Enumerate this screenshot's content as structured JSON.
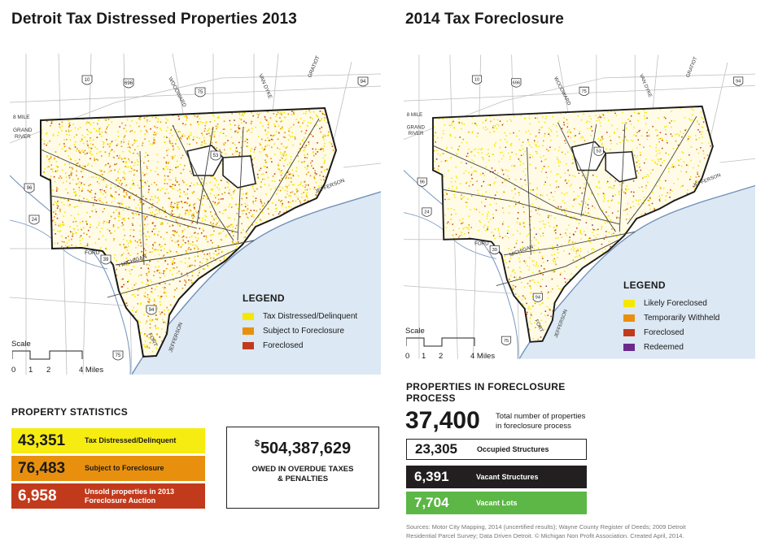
{
  "left": {
    "title": "Detroit Tax Distressed Properties 2013",
    "legend": {
      "heading": "LEGEND",
      "items": [
        {
          "label": "Tax Distressed/Delinquent",
          "color": "#f5e800"
        },
        {
          "label": "Subject to Foreclosure",
          "color": "#e8900e"
        },
        {
          "label": "Foreclosed",
          "color": "#c23a1c"
        }
      ]
    },
    "scale": {
      "title": "Scale",
      "ticks": [
        "0",
        "1",
        "2",
        "4 Miles"
      ]
    },
    "stats_heading": "PROPERTY STATISTICS",
    "stats": [
      {
        "value": "43,351",
        "label": "Tax Distressed/Delinquent",
        "color": "#f7ec12"
      },
      {
        "value": "76,483",
        "label": "Subject to Foreclosure",
        "color": "#e8900e"
      },
      {
        "value": "6,958",
        "label": "Unsold properties in 2013 Foreclosure Auction",
        "color": "#c23a1c"
      }
    ],
    "owed": {
      "currency": "$",
      "amount": "504,387,629",
      "line1": "OWED IN OVERDUE TAXES",
      "line2": "& PENALTIES"
    }
  },
  "right": {
    "title": "2014 Tax Foreclosure",
    "legend": {
      "heading": "LEGEND",
      "items": [
        {
          "label": "Likely Foreclosed",
          "color": "#f5e800"
        },
        {
          "label": "Temporarily Withheld",
          "color": "#e8900e"
        },
        {
          "label": "Foreclosed",
          "color": "#c23a1c"
        },
        {
          "label": "Redeemed",
          "color": "#6a2a8c"
        }
      ]
    },
    "scale": {
      "title": "Scale",
      "ticks": [
        "0",
        "1",
        "2",
        "4 Miles"
      ]
    },
    "process_heading_1": "PROPERTIES IN FORECLOSURE",
    "process_heading_2": "PROCESS",
    "total": "37,400",
    "total_desc_1": "Total number of properties",
    "total_desc_2": "in foreclosure process",
    "breakdown": [
      {
        "value": "23,305",
        "label": "Occupied Structures",
        "bg": "#ffffff",
        "fg": "#1a1a1a"
      },
      {
        "value": "6,391",
        "label": "Vacant Structures",
        "bg": "#231f20",
        "fg": "#ffffff"
      },
      {
        "value": "7,704",
        "label": "Vacant Lots",
        "bg": "#5cb746",
        "fg": "#ffffff"
      }
    ],
    "sources_1": "Sources:  Motor City Mapping, 2014 (uncertified results); Wayne County Register of Deeds; 2009 Detroit",
    "sources_2": "Residential Parcel Survey; Data Driven Detroit.  © Michigan Non Profit Association.  Created April, 2014."
  },
  "map_labels": {
    "eight_mile": "8 MILE",
    "grand": "GRAND",
    "river": "RIVER",
    "woodward": "WOODWARD",
    "van_dyke": "VAN DYKE",
    "gratiot": "GRATIOT",
    "jefferson_e": "JEFFERSON",
    "jefferson_s": "JEFFERSON",
    "ford_road": "FORD",
    "fort": "FORT",
    "michigan": "MICHIGAN",
    "i96": "96",
    "i94w": "94",
    "i94e": "94",
    "i75n": "75",
    "i75s": "75",
    "i696": "696",
    "us10": "10",
    "us24": "24",
    "m39": "39",
    "m53": "53"
  }
}
